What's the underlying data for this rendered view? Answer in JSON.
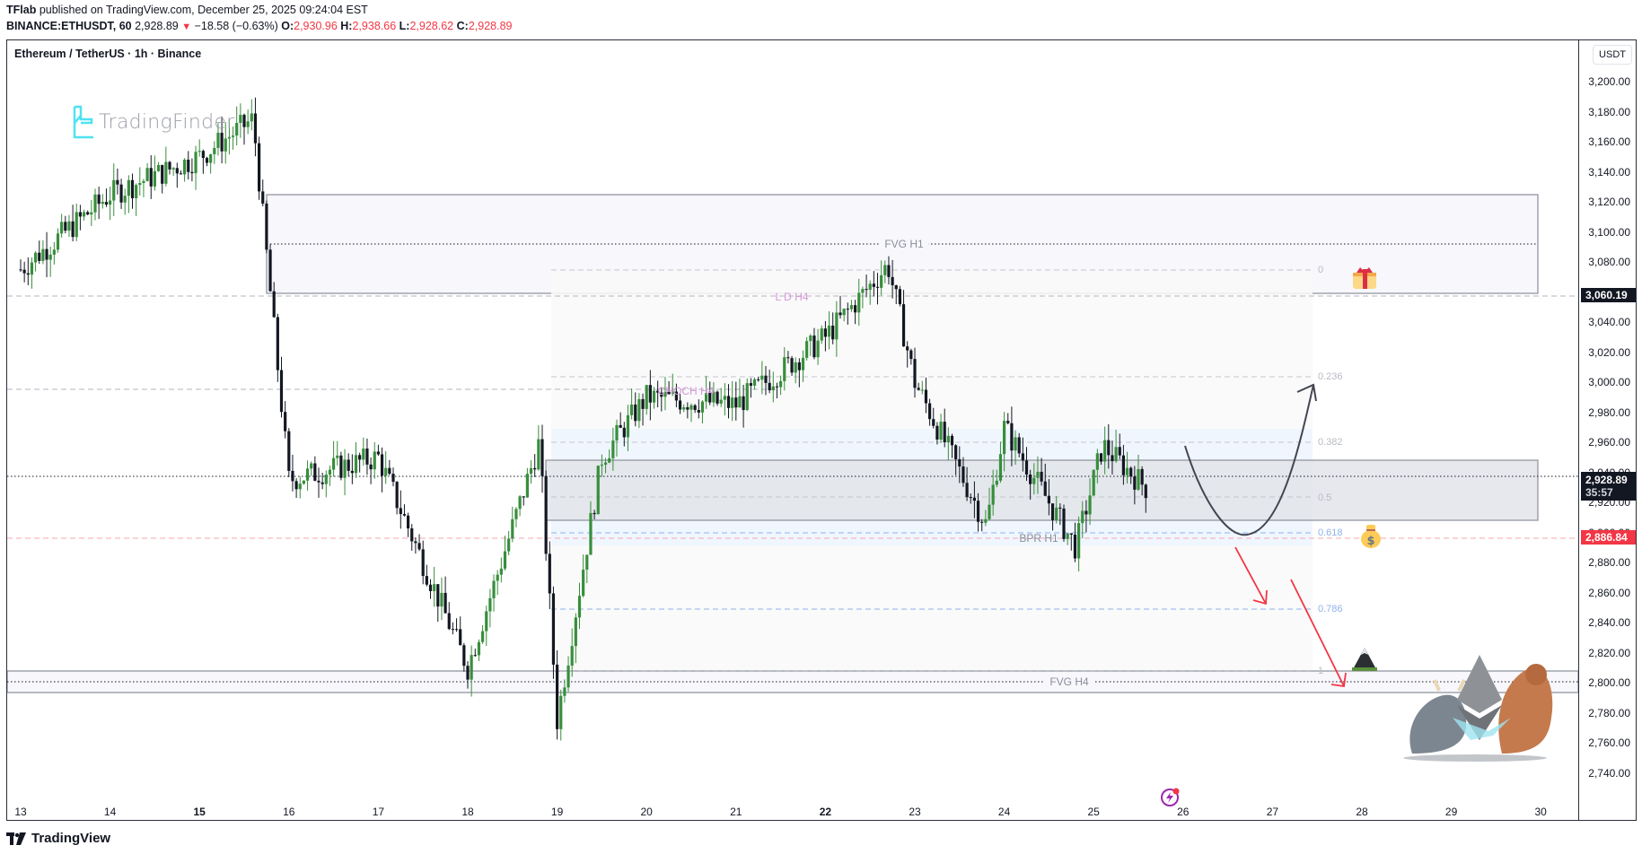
{
  "header": {
    "publisher": "TFlab",
    "published_text": "published on TradingView.com, December 25, 2025 09:24:04 EST",
    "symbol": "BINANCE:ETHUSDT, 60",
    "last_price": "2,928.89",
    "change_arrow": "▼",
    "change": "−18.58 (−0.63%)",
    "o_label": "O:",
    "o_value": "2,930.96",
    "h_label": "H:",
    "h_value": "2,938.66",
    "l_label": "L:",
    "l_value": "2,928.62",
    "c_label": "C:",
    "c_value": "2,928.89"
  },
  "chart": {
    "title": "Ethereum / TetherUS · 1h · Binance",
    "watermark": "TradingFinder",
    "currency": "USDT",
    "price_badges": {
      "current": "2,928.89",
      "countdown": "35:57",
      "high_line": "3,060.19",
      "alert_line": "2,886.84"
    },
    "annotations": {
      "fvg_h1": "FVG H1",
      "ld_h4": "L D H4",
      "choch_h4": "CHOCH H4",
      "bpr_h1": "BPR H1",
      "fvg_h4": "FVG H4"
    },
    "fib_levels": [
      "0",
      "0.236",
      "0.382",
      "0.5",
      "0.618",
      "0.786",
      "1"
    ]
  },
  "footer": {
    "brand": "TradingView"
  },
  "colors": {
    "up_candle": "#388e3c",
    "down_candle": "#131722",
    "badge_red": "#f23645",
    "badge_black": "#131722",
    "annotation_pink": "#d596d8",
    "fib_blue": "#8fb3ea",
    "arrow_red": "#f23645"
  },
  "chart_data": {
    "type": "candlestick",
    "title": "Ethereum / TetherUS · 1h · Binance",
    "xlabel": "",
    "ylabel": "USDT",
    "x_ticks": [
      "13",
      "14",
      "15",
      "16",
      "17",
      "18",
      "19",
      "20",
      "21",
      "22",
      "23",
      "24",
      "25",
      "26",
      "27",
      "28",
      "29",
      "30"
    ],
    "y_ticks": [
      3200,
      3180,
      3160,
      3140,
      3120,
      3100,
      3080,
      3060,
      3040,
      3020,
      3000,
      2980,
      2960,
      2940,
      2920,
      2900,
      2880,
      2860,
      2840,
      2820,
      2800,
      2780,
      2760,
      2740
    ],
    "ylim": [
      2730,
      3215
    ],
    "grid": false,
    "last_price": 2928.89,
    "ohlc_last": {
      "open": 2930.96,
      "high": 2938.66,
      "low": 2928.62,
      "close": 2928.89
    },
    "approx_daily_path": [
      {
        "date": "13",
        "price": 3075
      },
      {
        "date": "14",
        "price": 3125
      },
      {
        "date": "15",
        "price": 3150
      },
      {
        "date": "15.6",
        "price": 3175
      },
      {
        "date": "16",
        "price": 2935
      },
      {
        "date": "17",
        "price": 2950
      },
      {
        "date": "18",
        "price": 2810
      },
      {
        "date": "18.8",
        "price": 2960
      },
      {
        "date": "19",
        "price": 2775
      },
      {
        "date": "19.5",
        "price": 2950
      },
      {
        "date": "20",
        "price": 2990
      },
      {
        "date": "21",
        "price": 2985
      },
      {
        "date": "22",
        "price": 3030
      },
      {
        "date": "22.7",
        "price": 3078
      },
      {
        "date": "23",
        "price": 3000
      },
      {
        "date": "23.8",
        "price": 2905
      },
      {
        "date": "24",
        "price": 2970
      },
      {
        "date": "24.8",
        "price": 2890
      },
      {
        "date": "25.1",
        "price": 2958
      },
      {
        "date": "25.6",
        "price": 2929
      }
    ],
    "zones": [
      {
        "name": "FVG H1",
        "top": 3125,
        "bottom": 3060,
        "mid": 3095
      },
      {
        "name": "BPR H1",
        "top": 2906,
        "bottom": 2867,
        "mid": 2886
      },
      {
        "name": "FVG H4",
        "top": 2775,
        "bottom": 2757,
        "mid": 2766
      }
    ],
    "levels": [
      {
        "name": "L D H4",
        "price": 3060
      },
      {
        "name": "CHOCH H4",
        "price": 2997
      }
    ],
    "fibonacci": {
      "high": 3077,
      "low": 2775,
      "levels": [
        {
          "ratio": 0,
          "price": 3077
        },
        {
          "ratio": 0.236,
          "price": 3006
        },
        {
          "ratio": 0.382,
          "price": 2962
        },
        {
          "ratio": 0.5,
          "price": 2926
        },
        {
          "ratio": 0.618,
          "price": 2890
        },
        {
          "ratio": 0.786,
          "price": 2840
        },
        {
          "ratio": 1,
          "price": 2775
        }
      ]
    },
    "projections": [
      {
        "type": "bullish",
        "path": "dip to ~2886 on Dec 26 then rally to ~3000 by Dec 27"
      },
      {
        "type": "bearish",
        "path": "break below BPR toward ~2840 then ~2795"
      }
    ]
  }
}
